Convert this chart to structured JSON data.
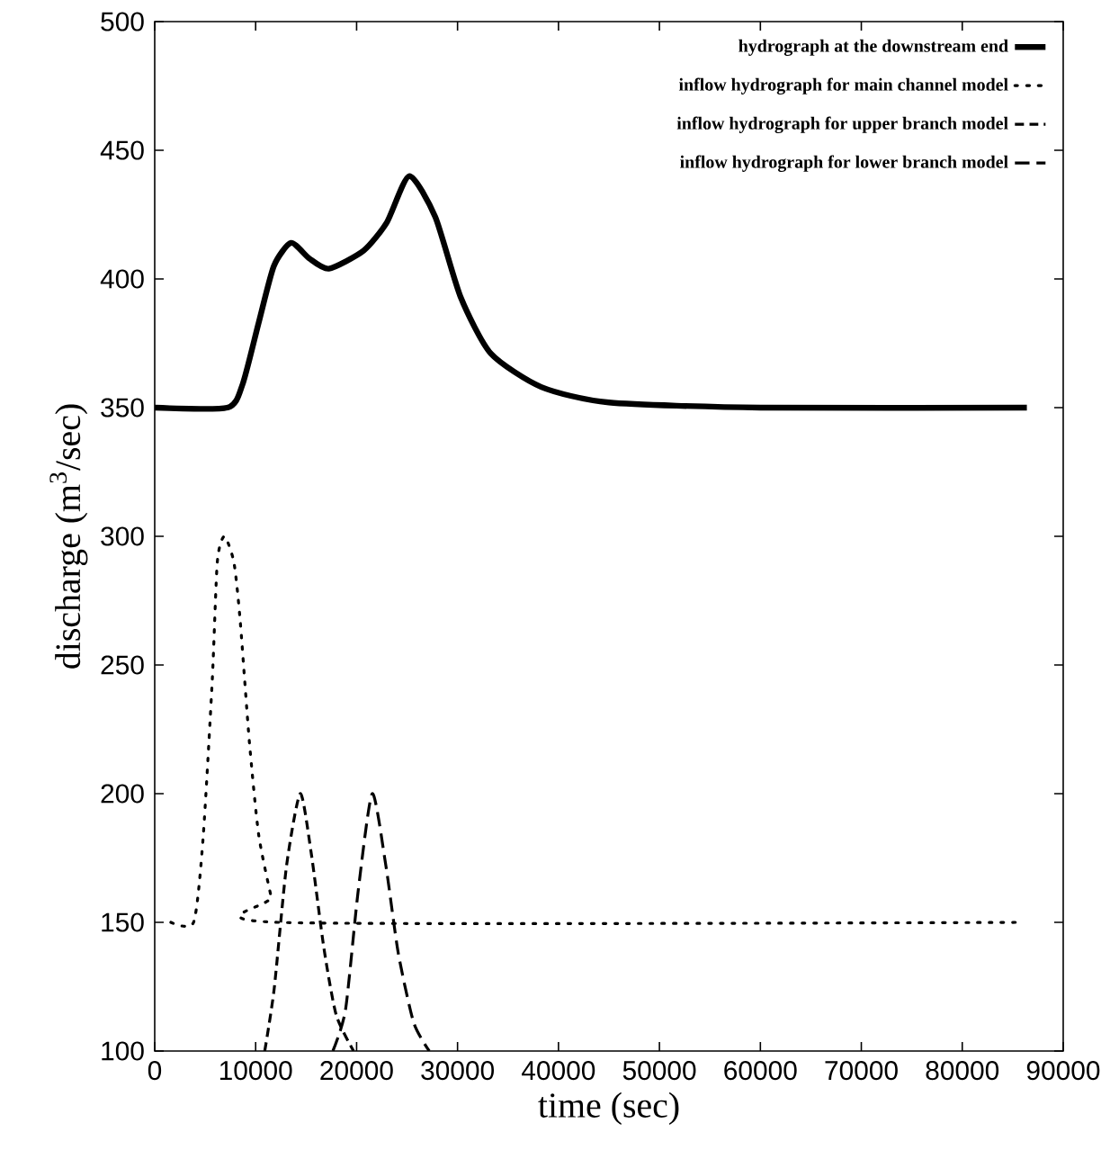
{
  "chart_data": {
    "type": "line",
    "xlabel": "time (sec)",
    "ylabel": "discharge (m$^{3}$/sec)",
    "xlim": [
      0,
      90000
    ],
    "ylim": [
      100,
      500
    ],
    "xticks": [
      0,
      10000,
      20000,
      30000,
      40000,
      50000,
      60000,
      70000,
      80000,
      90000
    ],
    "yticks": [
      100,
      150,
      200,
      250,
      300,
      350,
      400,
      450,
      500
    ],
    "legend": "top right",
    "marker": "none",
    "grid": false,
    "series": [
      {
        "name": "hydrograph at the downstream end",
        "color": "#000000",
        "line_style": "solid",
        "x": [
          0,
          7200,
          8700,
          10300,
          11800,
          13500,
          15300,
          17250,
          20700,
          23000,
          25230,
          27800,
          30300,
          33300,
          38300,
          45000,
          60000,
          86400
        ],
        "values": [
          350,
          350,
          359,
          383,
          405,
          414,
          408,
          404,
          411,
          422,
          440,
          424,
          393,
          371,
          358,
          352,
          350,
          350
        ]
      },
      {
        "name": "inflow hydrograph for main channel model",
        "color": "#000000",
        "line_style": "dotted",
        "x": [
          1600,
          3850,
          4780,
          5700,
          6200,
          6900,
          7840,
          8450,
          9380,
          10300,
          11530,
          12200,
          85900
        ],
        "values": [
          150,
          150,
          182,
          244,
          290,
          300,
          290,
          268,
          220,
          184,
          160,
          150,
          150
        ]
      },
      {
        "name": "inflow hydrograph for upper branch model",
        "color": "#000000",
        "line_style": "dashed",
        "x": [
          10900,
          11830,
          13060,
          14420,
          15500,
          16760,
          17980,
          19700
        ],
        "values": [
          100,
          124,
          172,
          200,
          177,
          140,
          114,
          100
        ]
      },
      {
        "name": "inflow hydrograph for lower branch model",
        "color": "#000000",
        "line_style": "dashed",
        "x": [
          17650,
          18900,
          20150,
          21550,
          22900,
          24130,
          25660,
          27200
        ],
        "values": [
          100,
          116,
          162,
          200,
          172,
          138,
          111,
          100
        ]
      }
    ]
  }
}
